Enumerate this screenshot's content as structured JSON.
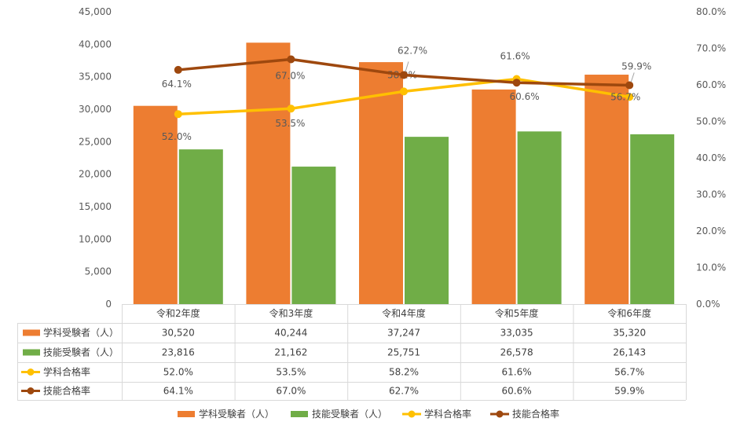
{
  "chart_data": {
    "type": "bar",
    "categories": [
      "令和2年度",
      "令和3年度",
      "令和4年度",
      "令和5年度",
      "令和6年度"
    ],
    "y_left": {
      "ylim": [
        0,
        45000
      ],
      "ticks": [
        "0",
        "5,000",
        "10,000",
        "15,000",
        "20,000",
        "25,000",
        "30,000",
        "35,000",
        "40,000",
        "45,000"
      ]
    },
    "y_right": {
      "ylim": [
        0,
        80
      ],
      "ticks": [
        "0.0%",
        "10.0%",
        "20.0%",
        "30.0%",
        "40.0%",
        "50.0%",
        "60.0%",
        "70.0%",
        "80.0%"
      ]
    },
    "series": [
      {
        "name": "学科受験者（人）",
        "type": "bar",
        "color": "#ED7D31",
        "axis": "left",
        "values": [
          30520,
          40244,
          37247,
          33035,
          35320
        ],
        "cell_text": [
          "30,520",
          "40,244",
          "37,247",
          "33,035",
          "35,320"
        ]
      },
      {
        "name": "技能受験者（人）",
        "type": "bar",
        "color": "#70AD47",
        "axis": "left",
        "values": [
          23816,
          21162,
          25751,
          26578,
          26143
        ],
        "cell_text": [
          "23,816",
          "21,162",
          "25,751",
          "26,578",
          "26,143"
        ]
      },
      {
        "name": "学科合格率",
        "type": "line",
        "color": "#FFC000",
        "axis": "right",
        "values": [
          52.0,
          53.5,
          58.2,
          61.6,
          56.7
        ],
        "labels": [
          "52.0%",
          "53.5%",
          "58.2%",
          "61.6%",
          "56.7%"
        ]
      },
      {
        "name": "技能合格率",
        "type": "line",
        "color": "#9E480E",
        "axis": "right",
        "values": [
          64.1,
          67.0,
          62.7,
          60.6,
          59.9
        ],
        "labels": [
          "64.1%",
          "67.0%",
          "62.7%",
          "60.6%",
          "59.9%"
        ]
      }
    ],
    "legend": "bottom",
    "data_table": true,
    "gridlines": false
  }
}
